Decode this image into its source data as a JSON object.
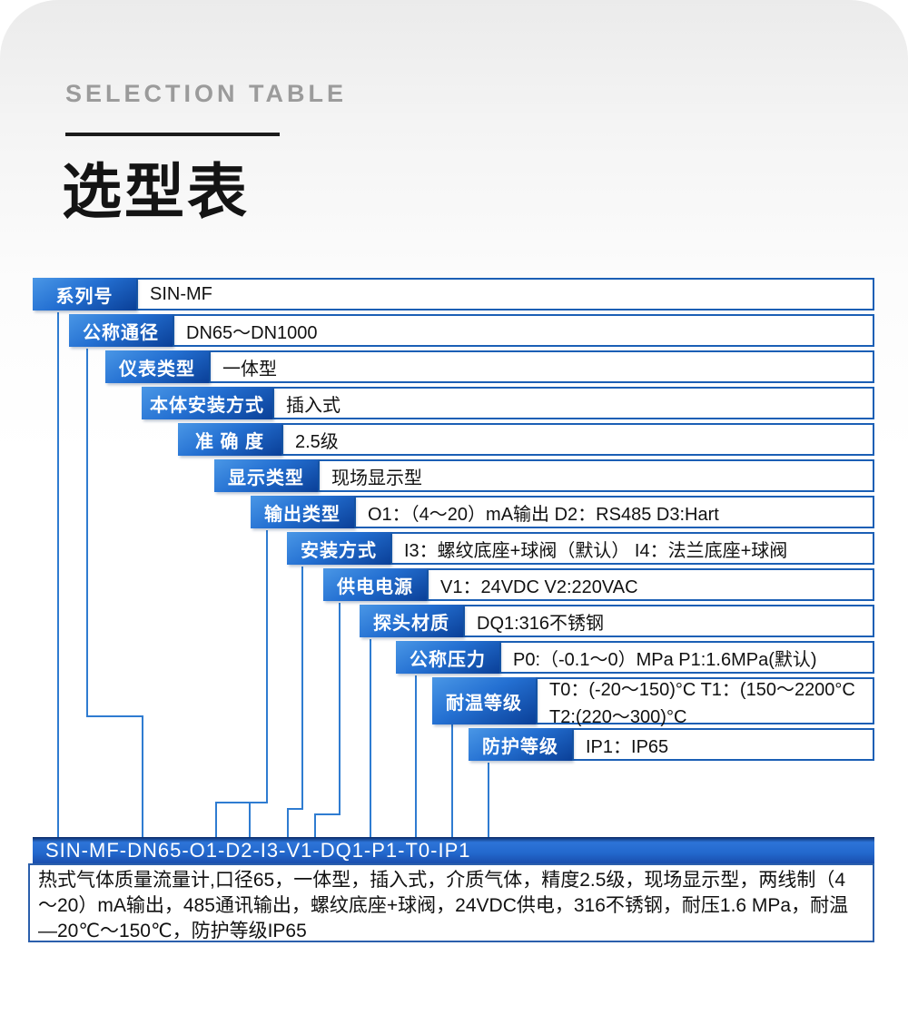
{
  "header": {
    "eyebrow": "SELECTION TABLE",
    "title": "选型表"
  },
  "table": {
    "rows": [
      {
        "label": "系列号",
        "value": "SIN-MF"
      },
      {
        "label": "公称通径",
        "value": "DN65～DN1000"
      },
      {
        "label": "仪表类型",
        "value": "一体型"
      },
      {
        "label": "本体安装方式",
        "value": "插入式"
      },
      {
        "label": "准 确 度",
        "value": "2.5级"
      },
      {
        "label": "显示类型",
        "value": "现场显示型"
      },
      {
        "label": "输出类型",
        "value": "O1：（4～20）mA输出 D2：RS485 D3:Hart"
      },
      {
        "label": "安装方式",
        "value": "I3：螺纹底座+球阀（默认） I4：法兰底座+球阀"
      },
      {
        "label": "供电电源",
        "value": "V1：24VDC V2:220VAC"
      },
      {
        "label": "探头材质",
        "value": "DQ1:316不锈钢"
      },
      {
        "label": "公称压力",
        "value": "P0:（-0.1～0）MPa P1:1.6MPa(默认)"
      },
      {
        "label": "耐温等级",
        "value": "T0：(-20～150)°C T1：(150～2200°C",
        "value_line2": "T2:(220～300)°C",
        "tall": true
      },
      {
        "label": "防护等级",
        "value": "IP1：IP65"
      }
    ]
  },
  "code_bar": {
    "text": "SIN-MF-DN65-O1-D2-I3-V1-DQ1-P1-T0-IP1"
  },
  "description": {
    "text": "热式气体质量流量计,口径65，一体型，插入式，介质气体，精度2.5级，现场显示型，两线制（4～20）mA输出，485通讯输出，螺纹底座+球阀，24VDC供电，316不锈钢，耐压1.6 MPa，耐温—20℃～150℃，防护等级IP65"
  },
  "colors": {
    "label_gradient_top": "#4a97e6",
    "label_gradient_bottom": "#0a3f97",
    "row_border": "#1b5fb5",
    "connector_line": "#2f7cd1",
    "code_bar_top": "#0a2a66",
    "code_bar_mid": "#2368cd",
    "description_border": "#2b5fac",
    "eyebrow_text": "#9b9b9b",
    "title_text": "#141414"
  }
}
